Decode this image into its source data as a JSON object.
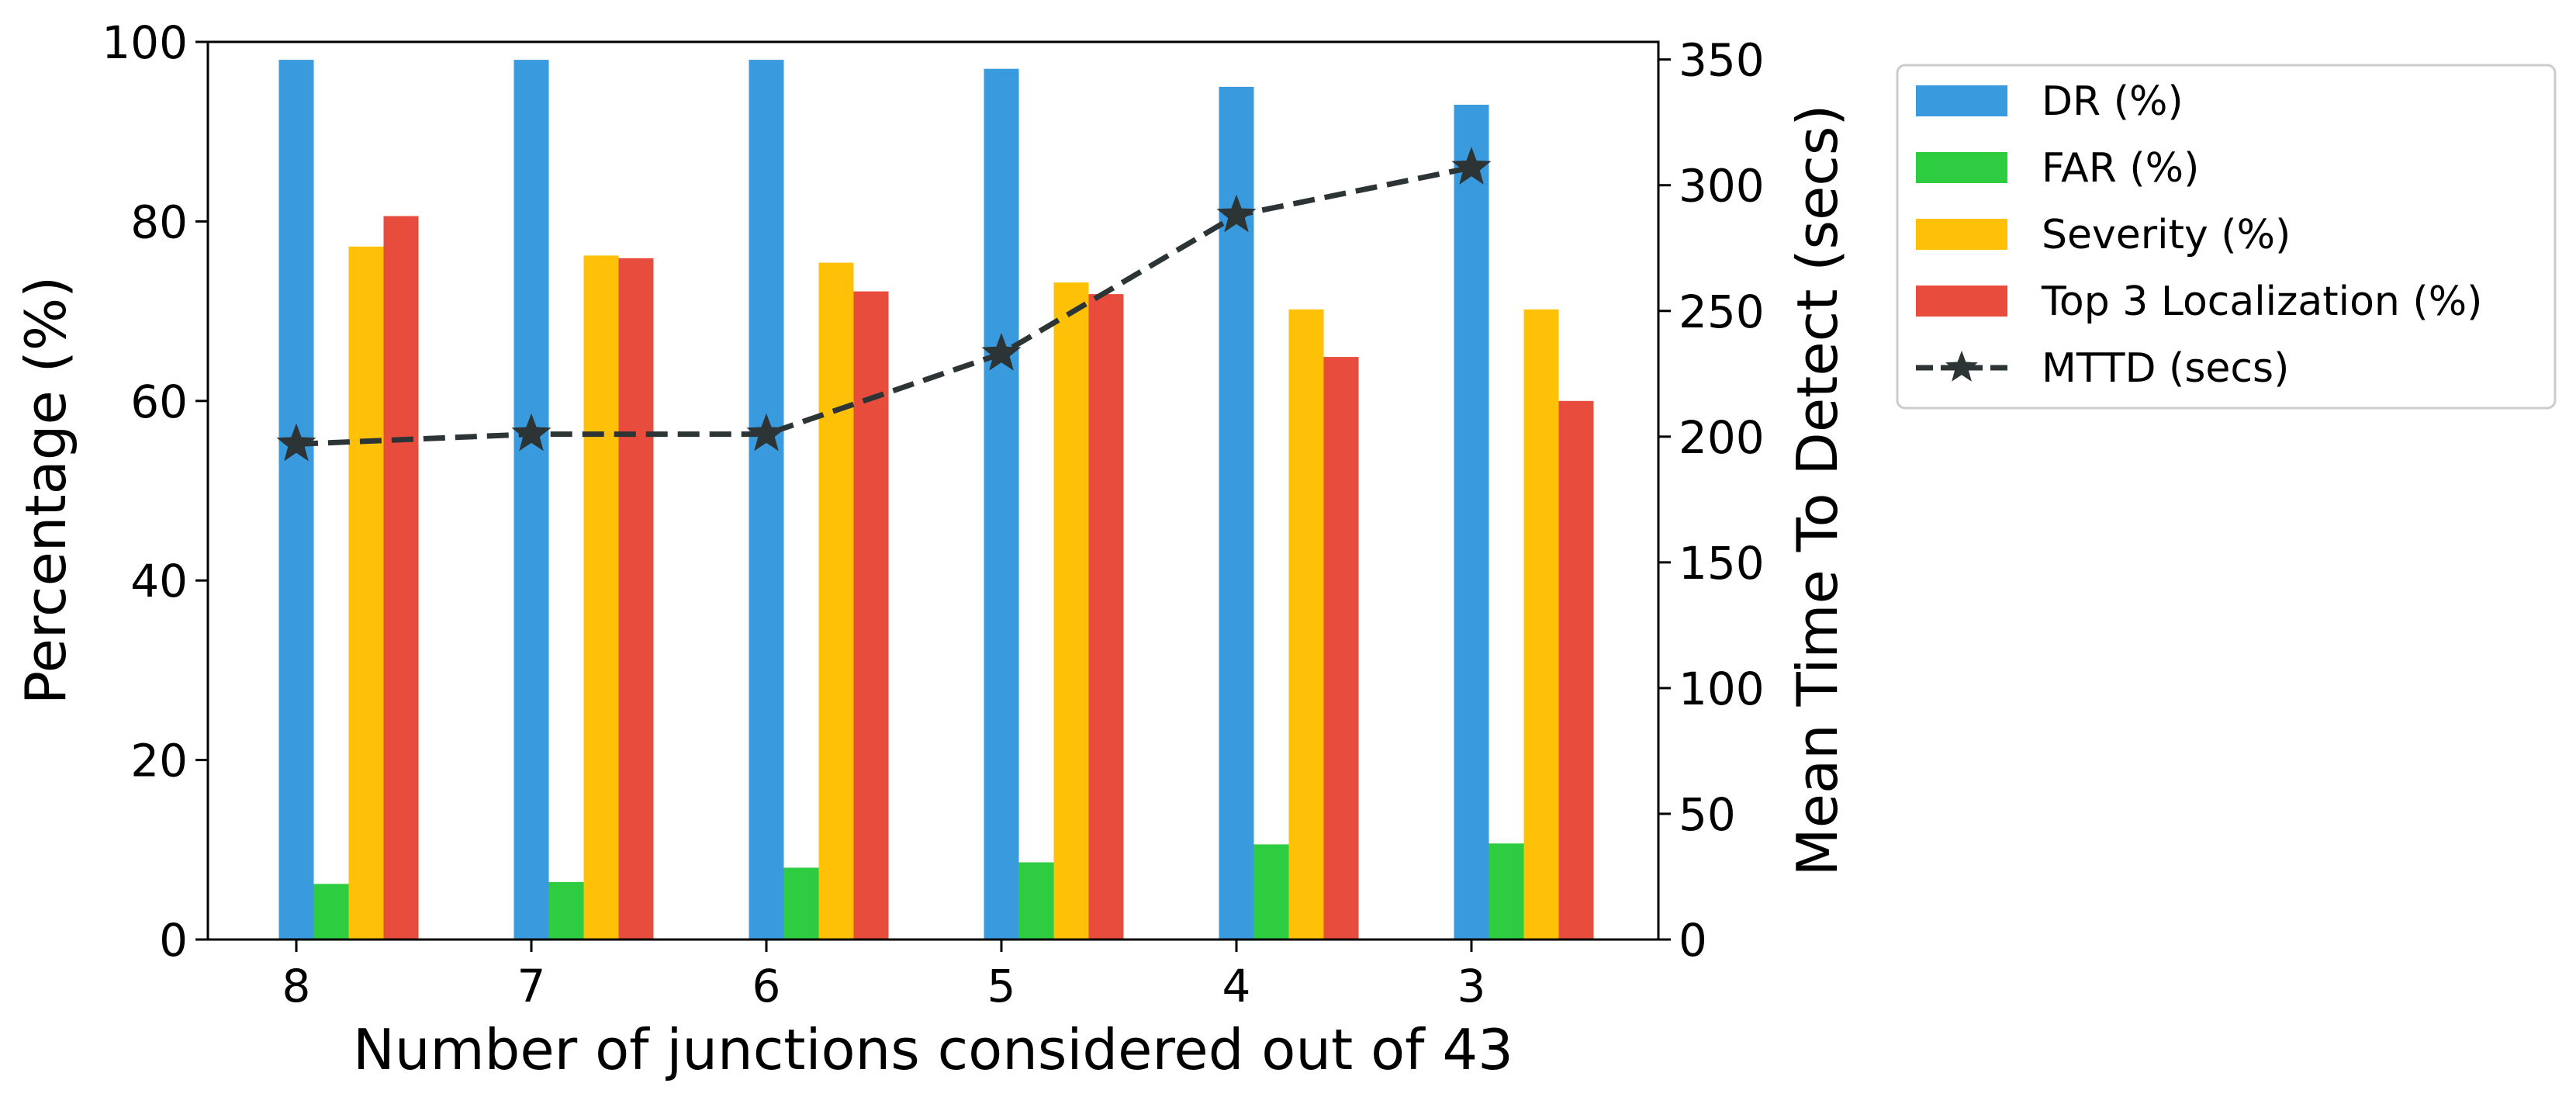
{
  "chart_data": {
    "type": "bar",
    "categories": [
      "8",
      "7",
      "6",
      "5",
      "4",
      "3"
    ],
    "xlabel": "Number of junctions considered out of 43",
    "ylabel": "Percentage (%)",
    "y2label": "Mean Time To Detect (secs)",
    "ylim": [
      0,
      100
    ],
    "y2lim": [
      0,
      357
    ],
    "yticks": [
      0,
      20,
      40,
      60,
      80,
      100
    ],
    "y2ticks": [
      0,
      50,
      100,
      150,
      200,
      250,
      300,
      350
    ],
    "grid": false,
    "legend_position": "outside-top-right",
    "series": [
      {
        "name": "DR (%)",
        "axis": "left",
        "kind": "bar",
        "color": "#3a9ade",
        "values": [
          98,
          98,
          98,
          97,
          95,
          93
        ]
      },
      {
        "name": "FAR (%)",
        "axis": "left",
        "kind": "bar",
        "color": "#2ecc40",
        "values": [
          6.2,
          6.4,
          8.0,
          8.6,
          10.6,
          10.7
        ]
      },
      {
        "name": "Severity (%)",
        "axis": "left",
        "kind": "bar",
        "color": "#ffc107",
        "values": [
          77.2,
          76.2,
          75.4,
          73.2,
          70.2,
          70.2
        ]
      },
      {
        "name": "Top 3 Localization (%)",
        "axis": "left",
        "kind": "bar",
        "color": "#e74c3c",
        "values": [
          80.6,
          75.9,
          72.2,
          71.9,
          64.9,
          60.0
        ]
      },
      {
        "name": "MTTD (secs)",
        "axis": "right",
        "kind": "line",
        "style": "dashed",
        "marker": "star",
        "color": "#2d3436",
        "values": [
          197,
          201,
          201,
          233,
          288,
          307
        ]
      }
    ]
  }
}
